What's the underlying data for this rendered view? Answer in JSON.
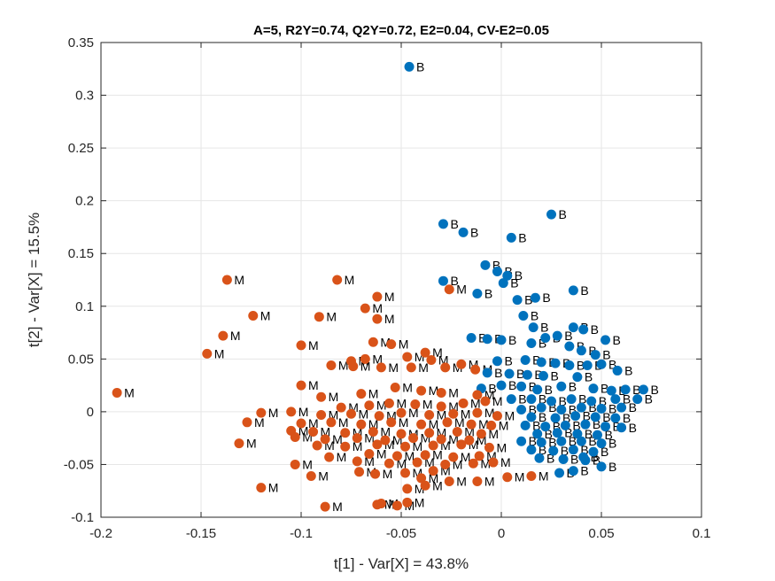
{
  "chart_data": {
    "type": "scatter",
    "title": "A=5, R2Y=0.74, Q2Y=0.72, E2=0.04, CV-E2=0.05",
    "xlabel": "t[1] - Var[X] = 43.8%",
    "ylabel": "t[2] - Var[X] = 15.5%",
    "xlim": [
      -0.2,
      0.1
    ],
    "ylim": [
      -0.1,
      0.35
    ],
    "xticks": [
      -0.2,
      -0.15,
      -0.1,
      -0.05,
      0,
      0.05,
      0.1
    ],
    "yticks": [
      -0.1,
      -0.05,
      0,
      0.05,
      0.1,
      0.15,
      0.2,
      0.25,
      0.3,
      0.35
    ],
    "xtick_labels": [
      "-0.2",
      "-0.15",
      "-0.1",
      "-0.05",
      "0",
      "0.05",
      "0.1"
    ],
    "ytick_labels": [
      "-0.1",
      "-0.05",
      "0",
      "0.05",
      "0.1",
      "0.15",
      "0.2",
      "0.25",
      "0.3",
      "0.35"
    ],
    "grid": true,
    "series": [
      {
        "label": "B",
        "color": "#0072BD",
        "points": [
          [
            -0.046,
            0.327
          ],
          [
            0.025,
            0.187
          ],
          [
            -0.029,
            0.178
          ],
          [
            -0.019,
            0.17
          ],
          [
            0.005,
            0.165
          ],
          [
            -0.008,
            0.139
          ],
          [
            -0.002,
            0.133
          ],
          [
            0.003,
            0.129
          ],
          [
            0.001,
            0.122
          ],
          [
            0.036,
            0.115
          ],
          [
            -0.012,
            0.112
          ],
          [
            0.008,
            0.106
          ],
          [
            0.017,
            0.108
          ],
          [
            0.011,
            0.091
          ],
          [
            0.016,
            0.08
          ],
          [
            0.036,
            0.08
          ],
          [
            0.041,
            0.078
          ],
          [
            0.052,
            0.068
          ],
          [
            0.022,
            0.07
          ],
          [
            0.028,
            0.072
          ],
          [
            -0.029,
            0.124
          ],
          [
            -0.015,
            0.07
          ],
          [
            -0.007,
            0.069
          ],
          [
            0.0,
            0.068
          ],
          [
            0.015,
            0.065
          ],
          [
            0.034,
            0.062
          ],
          [
            0.04,
            0.058
          ],
          [
            0.047,
            0.054
          ],
          [
            -0.002,
            0.048
          ],
          [
            0.012,
            0.049
          ],
          [
            0.02,
            0.047
          ],
          [
            0.027,
            0.046
          ],
          [
            0.034,
            0.044
          ],
          [
            0.043,
            0.044
          ],
          [
            0.05,
            0.045
          ],
          [
            -0.007,
            0.037
          ],
          [
            0.004,
            0.036
          ],
          [
            0.013,
            0.035
          ],
          [
            0.021,
            0.034
          ],
          [
            0.038,
            0.033
          ],
          [
            0.058,
            0.039
          ],
          [
            -0.01,
            0.022
          ],
          [
            0.0,
            0.025
          ],
          [
            0.01,
            0.024
          ],
          [
            0.018,
            0.021
          ],
          [
            0.03,
            0.024
          ],
          [
            0.046,
            0.022
          ],
          [
            0.055,
            0.02
          ],
          [
            0.062,
            0.021
          ],
          [
            0.071,
            0.021
          ],
          [
            0.005,
            0.012
          ],
          [
            0.015,
            0.012
          ],
          [
            0.025,
            0.01
          ],
          [
            0.035,
            0.012
          ],
          [
            0.045,
            0.01
          ],
          [
            0.057,
            0.012
          ],
          [
            0.068,
            0.012
          ],
          [
            0.01,
            0.002
          ],
          [
            0.02,
            0.004
          ],
          [
            0.03,
            0.002
          ],
          [
            0.04,
            0.004
          ],
          [
            0.05,
            0.003
          ],
          [
            0.06,
            0.004
          ],
          [
            0.015,
            -0.005
          ],
          [
            0.027,
            -0.006
          ],
          [
            0.037,
            -0.004
          ],
          [
            0.047,
            -0.005
          ],
          [
            0.057,
            -0.006
          ],
          [
            0.012,
            -0.013
          ],
          [
            0.022,
            -0.014
          ],
          [
            0.032,
            -0.013
          ],
          [
            0.042,
            -0.012
          ],
          [
            0.052,
            -0.014
          ],
          [
            0.06,
            -0.015
          ],
          [
            0.018,
            -0.021
          ],
          [
            0.028,
            -0.02
          ],
          [
            0.038,
            -0.021
          ],
          [
            0.048,
            -0.022
          ],
          [
            0.01,
            -0.028
          ],
          [
            0.02,
            -0.029
          ],
          [
            0.03,
            -0.028
          ],
          [
            0.04,
            -0.028
          ],
          [
            0.05,
            -0.03
          ],
          [
            0.015,
            -0.036
          ],
          [
            0.026,
            -0.037
          ],
          [
            0.036,
            -0.036
          ],
          [
            0.046,
            -0.038
          ],
          [
            0.019,
            -0.044
          ],
          [
            0.031,
            -0.045
          ],
          [
            0.041,
            -0.043
          ],
          [
            0.029,
            -0.058
          ],
          [
            0.036,
            -0.056
          ],
          [
            0.05,
            -0.052
          ],
          [
            0.042,
            -0.046
          ]
        ]
      },
      {
        "label": "M",
        "color": "#D95319",
        "points": [
          [
            -0.192,
            0.018
          ],
          [
            -0.137,
            0.125
          ],
          [
            -0.082,
            0.125
          ],
          [
            -0.124,
            0.091
          ],
          [
            -0.091,
            0.09
          ],
          [
            -0.062,
            0.109
          ],
          [
            -0.068,
            0.098
          ],
          [
            -0.062,
            0.088
          ],
          [
            -0.139,
            0.072
          ],
          [
            -0.147,
            0.055
          ],
          [
            -0.1,
            0.063
          ],
          [
            -0.064,
            0.066
          ],
          [
            -0.055,
            0.064
          ],
          [
            -0.075,
            0.048
          ],
          [
            -0.068,
            0.05
          ],
          [
            -0.047,
            0.052
          ],
          [
            -0.038,
            0.056
          ],
          [
            -0.035,
            0.049
          ],
          [
            -0.085,
            0.044
          ],
          [
            -0.074,
            0.043
          ],
          [
            -0.06,
            0.042
          ],
          [
            -0.045,
            0.042
          ],
          [
            -0.028,
            0.042
          ],
          [
            -0.02,
            0.045
          ],
          [
            -0.013,
            0.04
          ],
          [
            -0.026,
            0.116
          ],
          [
            -0.1,
            0.025
          ],
          [
            -0.09,
            0.014
          ],
          [
            -0.07,
            0.017
          ],
          [
            -0.053,
            0.023
          ],
          [
            -0.04,
            0.02
          ],
          [
            -0.03,
            0.018
          ],
          [
            -0.012,
            0.016
          ],
          [
            -0.08,
            0.004
          ],
          [
            -0.066,
            0.006
          ],
          [
            -0.056,
            0.008
          ],
          [
            -0.043,
            0.007
          ],
          [
            -0.03,
            0.005
          ],
          [
            -0.019,
            0.008
          ],
          [
            -0.008,
            0.01
          ],
          [
            -0.12,
            -0.001
          ],
          [
            -0.105,
            0.0
          ],
          [
            -0.09,
            -0.003
          ],
          [
            -0.075,
            -0.002
          ],
          [
            -0.061,
            -0.004
          ],
          [
            -0.05,
            -0.001
          ],
          [
            -0.036,
            -0.003
          ],
          [
            -0.024,
            -0.002
          ],
          [
            -0.012,
            -0.001
          ],
          [
            -0.002,
            -0.004
          ],
          [
            -0.127,
            -0.01
          ],
          [
            -0.1,
            -0.011
          ],
          [
            -0.085,
            -0.01
          ],
          [
            -0.07,
            -0.012
          ],
          [
            -0.055,
            -0.01
          ],
          [
            -0.04,
            -0.012
          ],
          [
            -0.027,
            -0.01
          ],
          [
            -0.015,
            -0.012
          ],
          [
            -0.005,
            -0.013
          ],
          [
            -0.105,
            -0.018
          ],
          [
            -0.094,
            -0.019
          ],
          [
            -0.078,
            -0.02
          ],
          [
            -0.064,
            -0.019
          ],
          [
            -0.05,
            -0.021
          ],
          [
            -0.036,
            -0.02
          ],
          [
            -0.022,
            -0.019
          ],
          [
            -0.01,
            -0.021
          ],
          [
            -0.103,
            -0.024
          ],
          [
            -0.088,
            -0.026
          ],
          [
            -0.072,
            -0.025
          ],
          [
            -0.058,
            -0.027
          ],
          [
            -0.044,
            -0.025
          ],
          [
            -0.03,
            -0.026
          ],
          [
            -0.016,
            -0.027
          ],
          [
            -0.131,
            -0.03
          ],
          [
            -0.092,
            -0.032
          ],
          [
            -0.078,
            -0.033
          ],
          [
            -0.062,
            -0.031
          ],
          [
            -0.048,
            -0.033
          ],
          [
            -0.034,
            -0.032
          ],
          [
            -0.02,
            -0.031
          ],
          [
            -0.006,
            -0.034
          ],
          [
            -0.086,
            -0.043
          ],
          [
            -0.066,
            -0.04
          ],
          [
            -0.052,
            -0.042
          ],
          [
            -0.038,
            -0.041
          ],
          [
            -0.024,
            -0.043
          ],
          [
            -0.011,
            -0.042
          ],
          [
            -0.103,
            -0.05
          ],
          [
            -0.072,
            -0.047
          ],
          [
            -0.056,
            -0.049
          ],
          [
            -0.042,
            -0.048
          ],
          [
            -0.028,
            -0.05
          ],
          [
            -0.014,
            -0.049
          ],
          [
            -0.004,
            -0.048
          ],
          [
            -0.095,
            -0.061
          ],
          [
            -0.071,
            -0.057
          ],
          [
            -0.063,
            -0.059
          ],
          [
            -0.048,
            -0.058
          ],
          [
            -0.034,
            -0.056
          ],
          [
            -0.026,
            -0.066
          ],
          [
            -0.012,
            -0.066
          ],
          [
            0.003,
            -0.062
          ],
          [
            0.015,
            -0.061
          ],
          [
            -0.04,
            -0.063
          ],
          [
            -0.12,
            -0.072
          ],
          [
            -0.047,
            -0.073
          ],
          [
            -0.038,
            -0.07
          ],
          [
            -0.088,
            -0.09
          ],
          [
            -0.062,
            -0.088
          ],
          [
            -0.06,
            -0.087
          ],
          [
            -0.052,
            -0.089
          ],
          [
            -0.047,
            -0.086
          ]
        ]
      }
    ]
  }
}
